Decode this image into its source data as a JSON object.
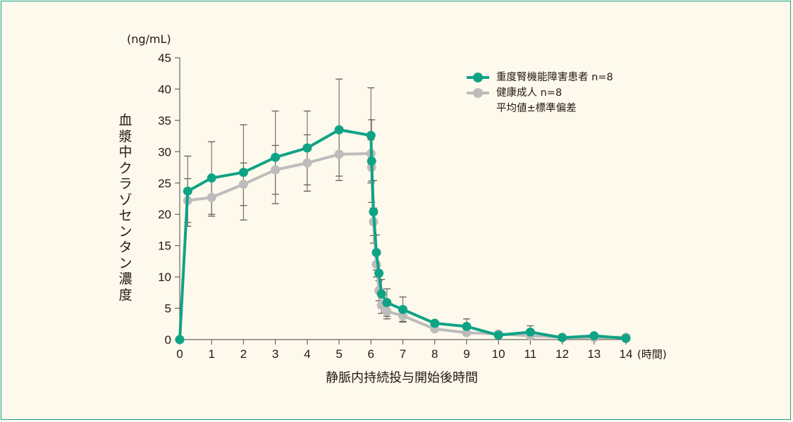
{
  "chart_data": {
    "type": "line",
    "title": "",
    "xlabel": "静脈内持続投与開始後時間",
    "xunit": "(時間)",
    "ylabel": "血漿中クラゾセンタン濃度",
    "yunit": "(ng/mL)",
    "xlim": [
      0,
      14
    ],
    "ylim": [
      0,
      45
    ],
    "xticks": [
      0,
      1,
      2,
      3,
      4,
      5,
      6,
      7,
      8,
      9,
      10,
      11,
      12,
      13,
      14
    ],
    "yticks": [
      0,
      5,
      10,
      15,
      20,
      25,
      30,
      35,
      40,
      45
    ],
    "grid": false,
    "legend_position": "top-right",
    "legend_note": "平均値±標準偏差",
    "series": [
      {
        "name": "健康成人 n=8",
        "color": "#bcbcbc",
        "x": [
          0.25,
          1,
          2,
          3,
          4,
          5,
          6,
          6.02,
          6.08,
          6.17,
          6.25,
          6.33,
          6.5,
          7,
          8,
          9,
          10,
          11,
          12,
          13,
          14
        ],
        "y": [
          22.2,
          22.7,
          24.8,
          27.1,
          28.2,
          29.6,
          29.7,
          27.5,
          18.8,
          12.0,
          7.8,
          5.5,
          4.5,
          3.8,
          1.7,
          1.1,
          0.9,
          0.6,
          0.4,
          0.3,
          0.4
        ],
        "err": [
          3.5,
          3.0,
          3.4,
          3.9,
          4.5,
          3.5,
          2.2,
          2.2,
          2.2,
          2.0,
          1.6,
          1.3,
          1.2,
          0.9,
          0,
          0,
          0,
          0,
          0,
          0,
          0
        ]
      },
      {
        "name": "重度腎機能障害患者 n=8",
        "color": "#0fa386",
        "x": [
          0,
          0.25,
          1,
          2,
          3,
          4,
          5,
          6,
          6.02,
          6.08,
          6.17,
          6.25,
          6.33,
          6.5,
          7,
          8,
          9,
          10,
          11,
          12,
          13,
          14
        ],
        "y": [
          0,
          23.7,
          25.8,
          26.7,
          29.1,
          30.6,
          33.5,
          32.6,
          28.5,
          20.4,
          13.9,
          10.6,
          7.3,
          5.9,
          4.8,
          2.6,
          2.1,
          0.7,
          1.2,
          0.3,
          0.6,
          0.2
        ],
        "err": [
          0,
          5.6,
          5.8,
          7.6,
          7.4,
          5.9,
          8.1,
          7.6,
          6.6,
          5.0,
          2.8,
          0,
          2.3,
          2.2,
          2.0,
          0,
          1.2,
          0,
          1.0,
          0,
          0,
          0
        ]
      }
    ]
  }
}
